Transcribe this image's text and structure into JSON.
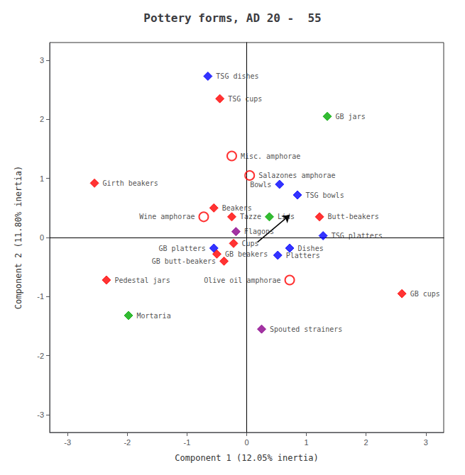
{
  "chart_data": {
    "type": "scatter",
    "title": "Pottery forms, AD 20 -  55",
    "xlabel": "Component 1 (12.05% inertia)",
    "ylabel": "Component 2 (11.80% inertia)",
    "xlim": [
      -3.3,
      3.3
    ],
    "ylim": [
      -3.3,
      3.3
    ],
    "xticks": [
      -3,
      -2,
      -1,
      0,
      1,
      2,
      3
    ],
    "yticks": [
      -3,
      -2,
      -1,
      0,
      1,
      2,
      3
    ],
    "grid": false,
    "points": [
      {
        "label": "TSG dishes",
        "x": -0.65,
        "y": 2.73,
        "color": "#0000ff",
        "marker": "diamond"
      },
      {
        "label": "TSG cups",
        "x": -0.45,
        "y": 2.35,
        "color": "#ff0000",
        "marker": "diamond"
      },
      {
        "label": "GB jars",
        "x": 1.35,
        "y": 2.05,
        "color": "#00aa00",
        "marker": "diamond"
      },
      {
        "label": "Misc. amphorae",
        "x": -0.25,
        "y": 1.38,
        "color": "#ff0000",
        "marker": "open circle"
      },
      {
        "label": "Salazones amphorae",
        "x": 0.05,
        "y": 1.05,
        "color": "#ff0000",
        "marker": "open circle"
      },
      {
        "label": "Girth beakers",
        "x": -2.55,
        "y": 0.92,
        "color": "#ff0000",
        "marker": "diamond"
      },
      {
        "label": "Bowls",
        "x": 0.55,
        "y": 0.9,
        "color": "#0000ff",
        "marker": "diamond"
      },
      {
        "label": "TSG bowls",
        "x": 0.85,
        "y": 0.72,
        "color": "#0000ff",
        "marker": "diamond"
      },
      {
        "label": "Beakers",
        "x": -0.55,
        "y": 0.5,
        "color": "#ff0000",
        "marker": "diamond"
      },
      {
        "label": "Wine amphorae",
        "x": -0.72,
        "y": 0.35,
        "color": "#ff0000",
        "marker": "open circle"
      },
      {
        "label": "Tazze",
        "x": -0.25,
        "y": 0.35,
        "color": "#ff0000",
        "marker": "diamond"
      },
      {
        "label": "Lids",
        "x": 0.38,
        "y": 0.35,
        "color": "#00aa00",
        "marker": "diamond"
      },
      {
        "label": "Butt-beakers",
        "x": 1.22,
        "y": 0.35,
        "color": "#ff0000",
        "marker": "diamond"
      },
      {
        "label": "Flagons",
        "x": -0.18,
        "y": 0.1,
        "color": "#8b008b",
        "marker": "diamond"
      },
      {
        "label": "TSG platters",
        "x": 1.28,
        "y": 0.03,
        "color": "#0000ff",
        "marker": "diamond"
      },
      {
        "label": "Cups",
        "x": -0.22,
        "y": -0.1,
        "color": "#ff0000",
        "marker": "diamond"
      },
      {
        "label": "GB platters",
        "x": -0.55,
        "y": -0.18,
        "color": "#0000ff",
        "marker": "diamond"
      },
      {
        "label": "Dishes",
        "x": 0.72,
        "y": -0.18,
        "color": "#0000ff",
        "marker": "diamond"
      },
      {
        "label": "GB beakers",
        "x": -0.5,
        "y": -0.28,
        "color": "#ff0000",
        "marker": "diamond"
      },
      {
        "label": "Platters",
        "x": 0.52,
        "y": -0.3,
        "color": "#0000ff",
        "marker": "diamond"
      },
      {
        "label": "GB butt-beakers",
        "x": -0.38,
        "y": -0.4,
        "color": "#ff0000",
        "marker": "diamond"
      },
      {
        "label": "Olive oil amphorae",
        "x": 0.72,
        "y": -0.72,
        "color": "#ff0000",
        "marker": "open circle"
      },
      {
        "label": "Pedestal jars",
        "x": -2.35,
        "y": -0.72,
        "color": "#ff0000",
        "marker": "diamond"
      },
      {
        "label": "GB cups",
        "x": 2.6,
        "y": -0.95,
        "color": "#ff0000",
        "marker": "diamond"
      },
      {
        "label": "Mortaria",
        "x": -1.98,
        "y": -1.32,
        "color": "#00aa00",
        "marker": "diamond"
      },
      {
        "label": "Spouted strainers",
        "x": 0.25,
        "y": -1.55,
        "color": "#8b008b",
        "marker": "diamond"
      }
    ],
    "arrow": {
      "start": [
        0.18,
        -0.08
      ],
      "end": [
        0.72,
        0.38
      ]
    }
  }
}
